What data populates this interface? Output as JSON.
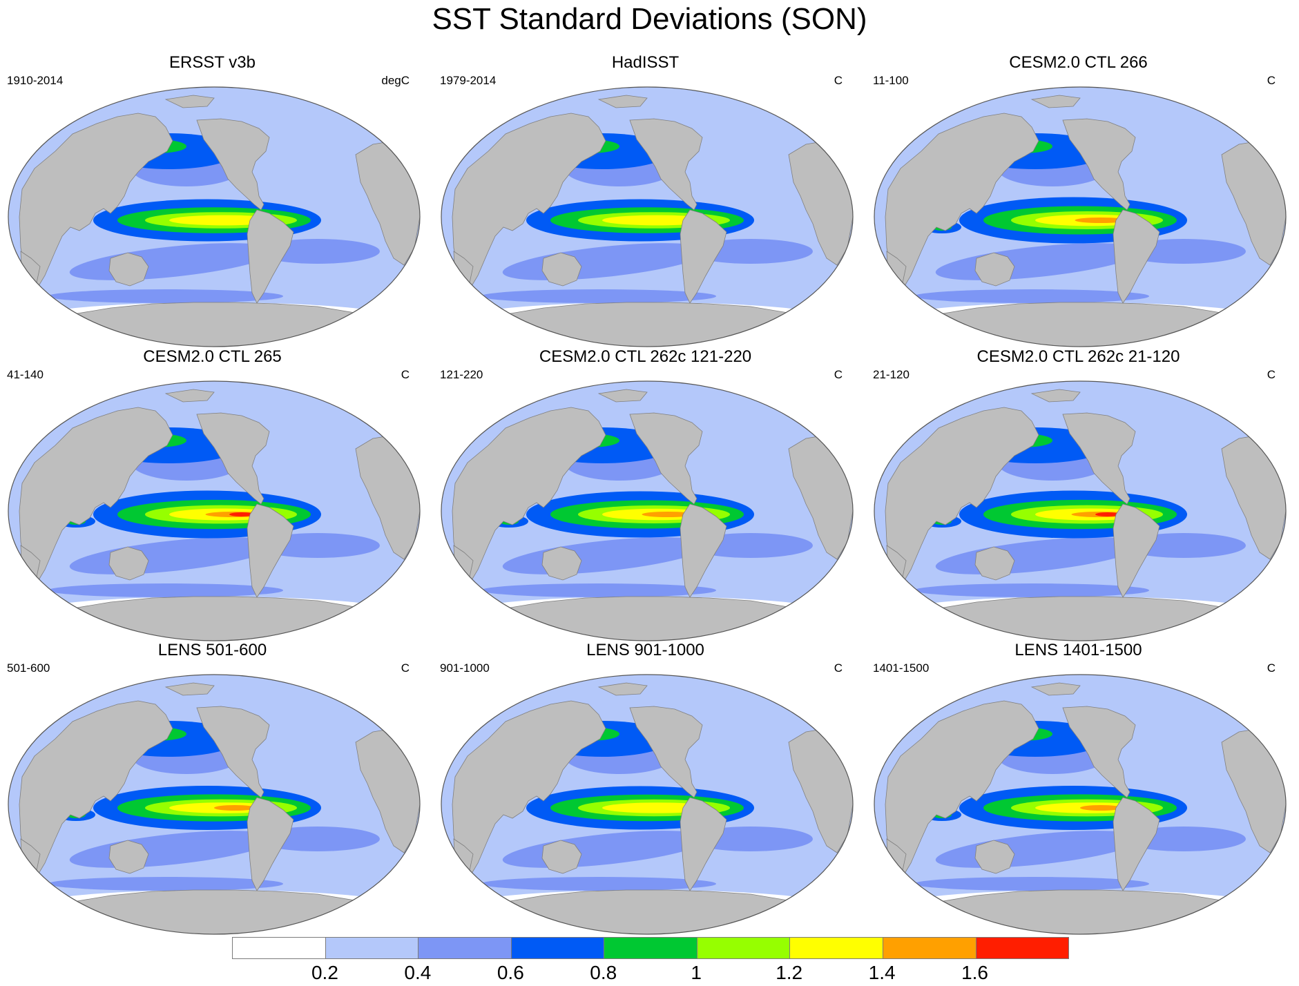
{
  "title": "SST Standard Deviations (SON)",
  "panels": [
    {
      "title": "ERSST v3b",
      "left_label": "1910-2014",
      "right_label": "degC",
      "intensity": 0.45
    },
    {
      "title": "HadISST",
      "left_label": "1979-2014",
      "right_label": "C",
      "intensity": 0.45
    },
    {
      "title": "CESM2.0 CTL 266",
      "left_label": "11-100",
      "right_label": "C",
      "intensity": 0.75
    },
    {
      "title": "CESM2.0 CTL 265",
      "left_label": "41-140",
      "right_label": "C",
      "intensity": 0.85
    },
    {
      "title": "CESM2.0 CTL 262c 121-220",
      "left_label": "121-220",
      "right_label": "C",
      "intensity": 0.75
    },
    {
      "title": "CESM2.0 CTL 262c 21-120",
      "left_label": "21-120",
      "right_label": "C",
      "intensity": 0.85
    },
    {
      "title": "LENS 501-600",
      "left_label": "501-600",
      "right_label": "C",
      "intensity": 0.6
    },
    {
      "title": "LENS 901-1000",
      "left_label": "901-1000",
      "right_label": "C",
      "intensity": 0.55
    },
    {
      "title": "LENS 1401-1500",
      "left_label": "1401-1500",
      "right_label": "C",
      "intensity": 0.6
    }
  ],
  "colorbar": {
    "colors": [
      "#ffffff",
      "#b4c8fa",
      "#7d96f5",
      "#005af5",
      "#00c832",
      "#96ff00",
      "#ffff00",
      "#ffa000",
      "#ff1e00"
    ],
    "labels": [
      "0.2",
      "0.4",
      "0.6",
      "0.8",
      "1",
      "1.2",
      "1.4",
      "1.6"
    ]
  },
  "style": {
    "land": "#bebebe",
    "ocean_base": "#b4c8fa",
    "outline": "#555555"
  }
}
